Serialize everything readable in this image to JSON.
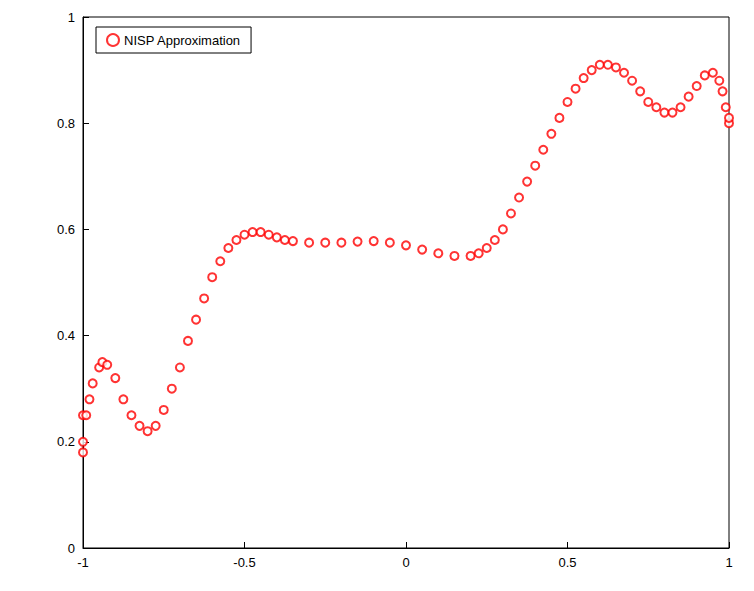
{
  "chart_data": {
    "type": "scatter",
    "x": [
      -1.0,
      -1.0,
      -1.0,
      -0.99,
      -0.98,
      -0.97,
      -0.95,
      -0.94,
      -0.925,
      -0.9,
      -0.875,
      -0.85,
      -0.825,
      -0.8,
      -0.775,
      -0.75,
      -0.725,
      -0.7,
      -0.675,
      -0.65,
      -0.625,
      -0.6,
      -0.575,
      -0.55,
      -0.525,
      -0.5,
      -0.475,
      -0.45,
      -0.425,
      -0.4,
      -0.375,
      -0.35,
      -0.3,
      -0.25,
      -0.2,
      -0.15,
      -0.1,
      -0.05,
      0.0,
      0.05,
      0.1,
      0.15,
      0.2,
      0.225,
      0.25,
      0.275,
      0.3,
      0.325,
      0.35,
      0.375,
      0.4,
      0.425,
      0.45,
      0.475,
      0.5,
      0.525,
      0.55,
      0.575,
      0.6,
      0.625,
      0.65,
      0.675,
      0.7,
      0.725,
      0.75,
      0.775,
      0.8,
      0.825,
      0.85,
      0.875,
      0.9,
      0.925,
      0.95,
      0.97,
      0.98,
      0.99,
      1.0,
      1.0
    ],
    "series": [
      {
        "name": "NISP Approximation",
        "color": "#ff0000",
        "marker": "circle",
        "values": [
          0.18,
          0.2,
          0.25,
          0.25,
          0.28,
          0.31,
          0.34,
          0.35,
          0.345,
          0.32,
          0.28,
          0.25,
          0.23,
          0.22,
          0.23,
          0.26,
          0.3,
          0.34,
          0.39,
          0.43,
          0.47,
          0.51,
          0.54,
          0.565,
          0.58,
          0.59,
          0.595,
          0.595,
          0.59,
          0.585,
          0.58,
          0.578,
          0.575,
          0.575,
          0.575,
          0.577,
          0.578,
          0.575,
          0.57,
          0.562,
          0.555,
          0.55,
          0.55,
          0.555,
          0.565,
          0.58,
          0.6,
          0.63,
          0.66,
          0.69,
          0.72,
          0.75,
          0.78,
          0.81,
          0.84,
          0.865,
          0.885,
          0.9,
          0.91,
          0.91,
          0.905,
          0.895,
          0.88,
          0.86,
          0.84,
          0.83,
          0.82,
          0.82,
          0.83,
          0.85,
          0.87,
          0.89,
          0.895,
          0.88,
          0.86,
          0.83,
          0.8,
          0.81
        ]
      }
    ],
    "xlim": [
      -1,
      1
    ],
    "xticks": [
      -1,
      -0.5,
      0,
      0.5,
      1
    ],
    "ylim": [
      0,
      1
    ],
    "yticks": [
      0,
      0.2,
      0.4,
      0.6,
      0.8,
      1
    ],
    "grid": false,
    "legend": "upper left"
  }
}
